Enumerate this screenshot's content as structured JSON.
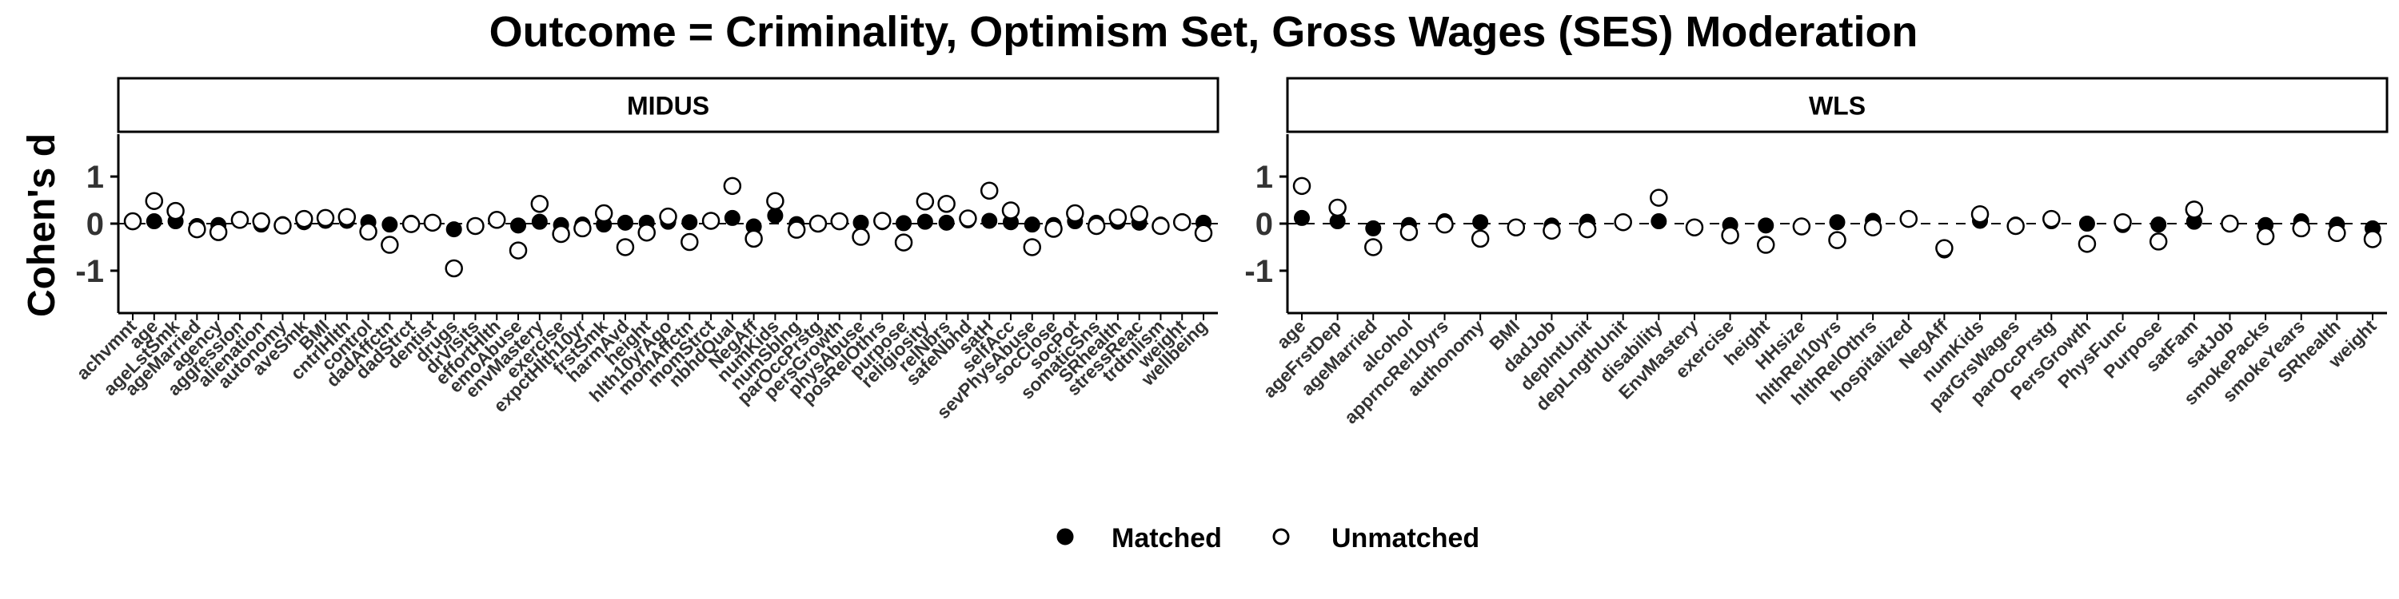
{
  "title": "Outcome = Criminality, Optimism Set, Gross Wages (SES) Moderation",
  "ylabel": "Cohen's d",
  "legend": {
    "position": "bottom",
    "items": [
      {
        "label": "Matched",
        "marker": "filled-circle"
      },
      {
        "label": "Unmatched",
        "marker": "open-circle"
      }
    ]
  },
  "colors": {
    "matched": "#000000",
    "unmatched": "#ffffff",
    "stroke": "#000000",
    "reference_line": "#000000"
  },
  "chart_data": [
    {
      "type": "scatter",
      "panel": "MIDUS",
      "ylim": [
        -1.9,
        1.9
      ],
      "yticks": [
        -1,
        0,
        1
      ],
      "reference_line": 0,
      "categories": [
        "achvmnt",
        "age",
        "ageLstSmk",
        "ageMarried",
        "agency",
        "aggression",
        "alienation",
        "autonomy",
        "aveSmk",
        "BMI",
        "cntrlHlth",
        "control",
        "dadAffctn",
        "dadStrct",
        "dentist",
        "drugs",
        "drVisits",
        "effortHlth",
        "emoAbuse",
        "envMastery",
        "exercise",
        "expctHlth10yr",
        "frstSmk",
        "harmAvd",
        "height",
        "hlth10yrAgo",
        "momAffctn",
        "momStrct",
        "nbhdQual",
        "NegAff",
        "numKids",
        "numSblng",
        "parOccPrstg",
        "persGrowth",
        "physAbuse",
        "posRelOthrs",
        "purpose",
        "religiosity",
        "relNbrs",
        "safeNbhd",
        "satH",
        "selfAcc",
        "sevPhysAbuse",
        "socClose",
        "socPot",
        "somaticSns",
        "SRhealth",
        "stressReac",
        "trdtnlism",
        "weight",
        "wellbeing"
      ],
      "series": [
        {
          "name": "Matched",
          "values": [
            0.03,
            0.05,
            0.05,
            -0.05,
            -0.03,
            0.1,
            -0.02,
            -0.01,
            0.03,
            0.06,
            0.06,
            0.03,
            -0.02,
            0.02,
            0.02,
            -0.12,
            -0.05,
            0.08,
            -0.04,
            0.04,
            -0.03,
            -0.02,
            -0.02,
            0.02,
            0.02,
            0.04,
            0.03,
            0.04,
            0.12,
            -0.06,
            0.17,
            -0.01,
            0.02,
            0.03,
            0.02,
            0.03,
            0.01,
            0.04,
            0.02,
            0.07,
            0.06,
            0.03,
            -0.02,
            -0.03,
            0.05,
            0.02,
            0.04,
            0.02,
            -0.02,
            0.05,
            0.02
          ]
        },
        {
          "name": "Unmatched",
          "values": [
            0.05,
            0.48,
            0.27,
            -0.12,
            -0.18,
            0.08,
            0.05,
            -0.04,
            0.1,
            0.12,
            0.14,
            -0.17,
            -0.45,
            -0.01,
            0.02,
            -0.95,
            -0.05,
            0.08,
            -0.57,
            0.42,
            -0.22,
            -0.1,
            0.22,
            -0.5,
            -0.19,
            0.15,
            -0.39,
            0.06,
            0.8,
            -0.32,
            0.48,
            -0.13,
            0.0,
            0.05,
            -0.28,
            0.06,
            -0.4,
            0.47,
            0.42,
            0.11,
            0.7,
            0.28,
            -0.5,
            -0.11,
            0.22,
            -0.05,
            0.13,
            0.2,
            -0.05,
            0.03,
            -0.2
          ]
        }
      ]
    },
    {
      "type": "scatter",
      "panel": "WLS",
      "ylim": [
        -1.9,
        1.9
      ],
      "yticks": [
        -1,
        0,
        1
      ],
      "reference_line": 0,
      "categories": [
        "age",
        "ageFrstDep",
        "ageMarried",
        "alcohol",
        "apprncRel10yrs",
        "authonomy",
        "BMI",
        "dadJob",
        "depIntUnit",
        "depLngthUnit",
        "disability",
        "EnvMastery",
        "exercise",
        "height",
        "HHsize",
        "hlthRel10yrs",
        "hlthRelOthrs",
        "hospitalized",
        "NegAff",
        "numKids",
        "parGrsWages",
        "parOccPrstg",
        "PersGrowth",
        "PhysFunc",
        "Purpose",
        "satFam",
        "satJob",
        "smokePacks",
        "smokeYears",
        "SRhealth",
        "weight"
      ],
      "series": [
        {
          "name": "Matched",
          "values": [
            0.12,
            0.05,
            -0.1,
            -0.03,
            0.05,
            0.03,
            -0.1,
            -0.04,
            0.04,
            0.02,
            0.05,
            -0.1,
            -0.03,
            -0.04,
            -0.08,
            0.03,
            0.06,
            0.1,
            -0.57,
            0.06,
            -0.02,
            0.05,
            0.0,
            -0.03,
            -0.02,
            0.04,
            0.0,
            -0.03,
            0.05,
            -0.02,
            -0.1
          ]
        },
        {
          "name": "Unmatched",
          "values": [
            0.8,
            0.34,
            -0.5,
            -0.18,
            -0.02,
            -0.32,
            -0.08,
            -0.15,
            -0.12,
            0.03,
            0.55,
            -0.08,
            -0.25,
            -0.45,
            -0.06,
            -0.35,
            -0.08,
            0.1,
            -0.52,
            0.2,
            -0.05,
            0.1,
            -0.43,
            0.03,
            -0.38,
            0.3,
            0.0,
            -0.27,
            -0.1,
            -0.2,
            -0.33
          ]
        }
      ]
    }
  ]
}
